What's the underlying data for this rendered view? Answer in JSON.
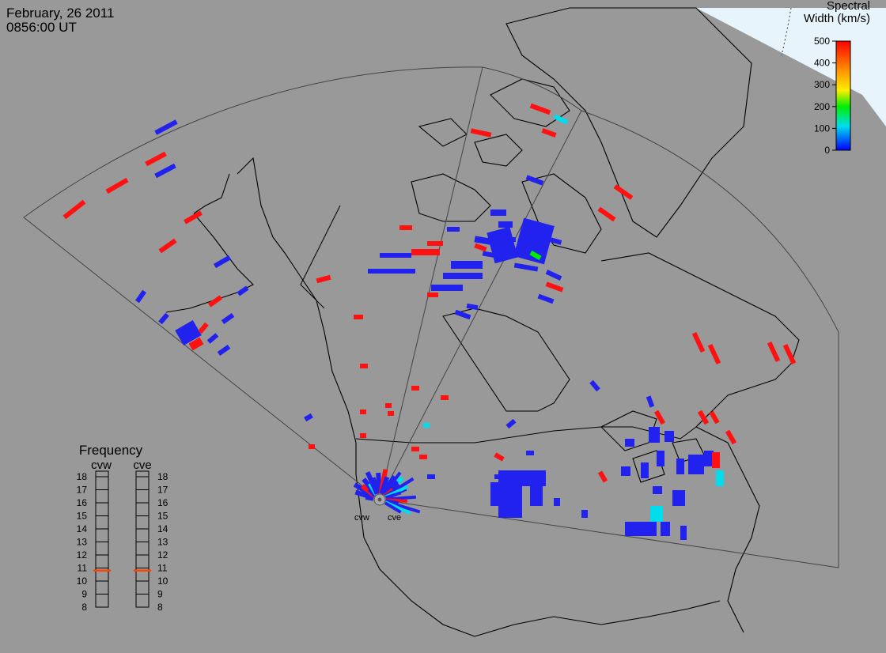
{
  "header": {
    "date": "February, 26 2011",
    "time": "0856:00 UT"
  },
  "colorbar": {
    "title_line1": "Spectral",
    "title_line2": "Width (km/s)",
    "ticks": [
      "500",
      "400",
      "300",
      "200",
      "100",
      "0"
    ],
    "colors": [
      "#ff0000",
      "#ff8800",
      "#ffff00",
      "#00ff00",
      "#00ffff",
      "#0000ff"
    ]
  },
  "frequency_panel": {
    "title": "Frequency",
    "columns": [
      {
        "label": "cvw",
        "current_mhz": 10.8
      },
      {
        "label": "cve",
        "current_mhz": 10.8
      }
    ],
    "scale": [
      "18",
      "17",
      "16",
      "15",
      "14",
      "13",
      "12",
      "11",
      "10",
      "9",
      "8"
    ],
    "marker_color": "#ff4400"
  },
  "radar_sites": [
    {
      "label": "cvw"
    },
    {
      "label": "cve"
    }
  ],
  "colors": {
    "background": "#999999",
    "night_region": "#e8f4fc",
    "low_width": "#2222ee",
    "high_width": "#ff1111",
    "mid_width": "#00ddee"
  }
}
